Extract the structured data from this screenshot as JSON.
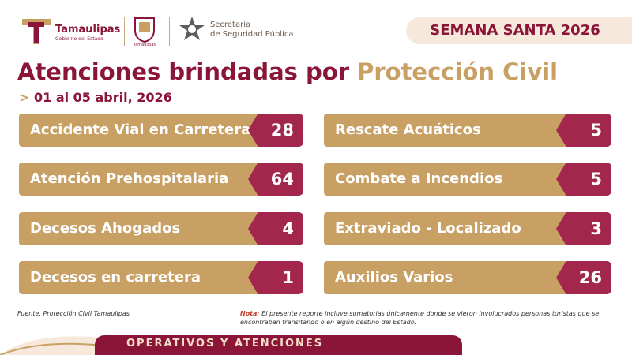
{
  "header": {
    "brand_name": "Tamaulipas",
    "brand_sub": "Gobierno del Estado",
    "crest_sub": "Tamaulipas",
    "secretaria_line1": "Secretaría",
    "secretaria_line2": "de Seguridad Pública",
    "banner": "SEMANA SANTA 2026"
  },
  "title": {
    "part1": "Atenciones brindadas por ",
    "part2": "Protección Civil"
  },
  "subtitle": {
    "marker": ">",
    "text": "01 al 05 abril, 2026"
  },
  "stats_left": [
    {
      "label": "Accidente Vial en Carretera",
      "value": "28"
    },
    {
      "label": "Atención Prehospitalaria",
      "value": "64"
    },
    {
      "label": "Decesos Ahogados",
      "value": "4"
    },
    {
      "label": "Decesos en carretera",
      "value": "1"
    }
  ],
  "stats_right": [
    {
      "label": "Rescate Acuáticos",
      "value": "5"
    },
    {
      "label": "Combate a Incendios",
      "value": "5"
    },
    {
      "label": "Extraviado - Localizado",
      "value": "3"
    },
    {
      "label": "Auxilios Varios",
      "value": "26"
    }
  ],
  "footer": {
    "source": "Fuente. Protección Civil Tamaulipas",
    "nota_label": "Nota:",
    "nota_text": "El presente reporte incluye sumatorias únicamente donde se vieron involucrados personas turistas que se encontraban transitando o en algún destino del Estado.",
    "bottom_bar": "OPERATIVOS Y ATENCIONES"
  },
  "colors": {
    "primary": "#8a1538",
    "gold": "#c9a064",
    "value_box": "#a3264d",
    "banner_bg": "#f6e9dc"
  }
}
